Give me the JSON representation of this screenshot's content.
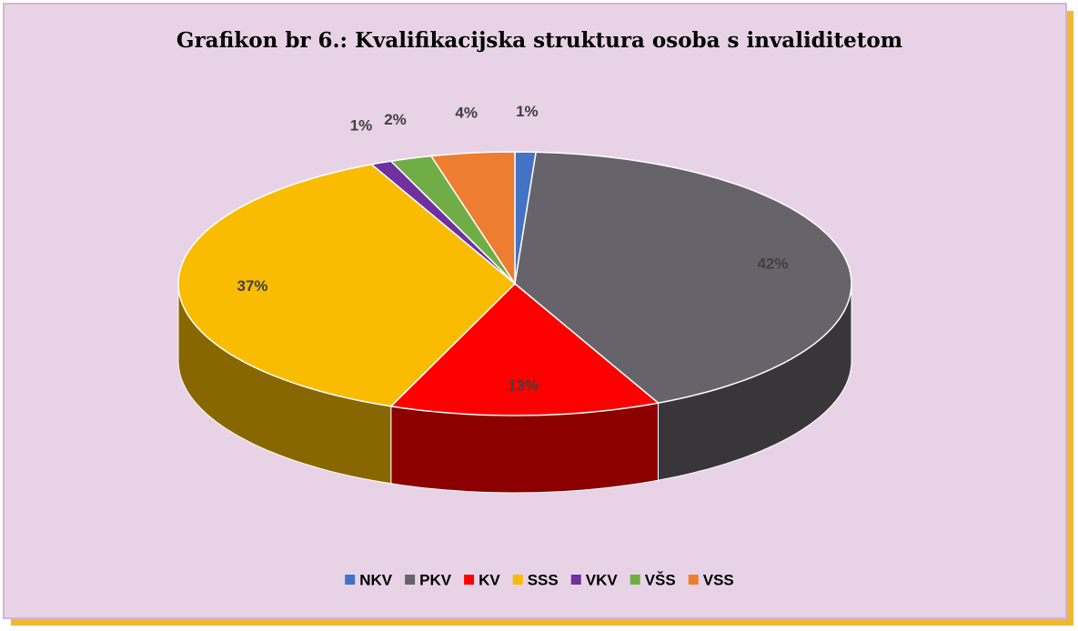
{
  "chart_data": {
    "type": "pie3d",
    "title": "Grafikon br 6.: Kvalifikacijska struktura osoba s invaliditetom",
    "categories": [
      "NKV",
      "PKV",
      "KV",
      "SSS",
      "VKV",
      "VŠS",
      "VSS"
    ],
    "values": [
      1,
      42,
      13,
      37,
      1,
      2,
      4
    ],
    "value_labels": [
      "1%",
      "42%",
      "13%",
      "37%",
      "1%",
      "2%",
      "4%"
    ],
    "colors": [
      "#4472c4",
      "#67636b",
      "#ff0000",
      "#f9bc00",
      "#7030a0",
      "#70ad47",
      "#ed7d31"
    ],
    "legend": "bottom"
  }
}
